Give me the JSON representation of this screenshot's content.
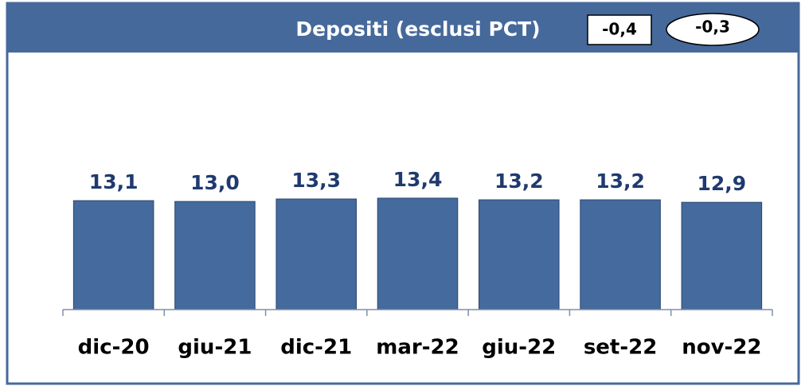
{
  "chart_data": {
    "type": "bar",
    "title": "Depositi (esclusi PCT)",
    "annotations": [
      "-0,4",
      "-0,3"
    ],
    "categories": [
      "dic-20",
      "giu-21",
      "dic-21",
      "mar-22",
      "giu-22",
      "set-22",
      "nov-22"
    ],
    "values": [
      13.1,
      13.0,
      13.3,
      13.4,
      13.2,
      13.2,
      12.9
    ],
    "value_labels": [
      "13,1",
      "13,0",
      "13,3",
      "13,4",
      "13,2",
      "13,2",
      "12,9"
    ],
    "color": "#456a9d",
    "ylim": [
      0,
      20
    ]
  }
}
